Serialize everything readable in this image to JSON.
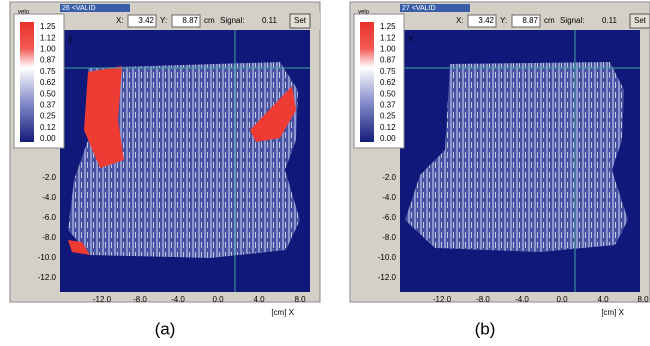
{
  "panels": [
    {
      "caption": "(a)",
      "window_title": "26 <VALID",
      "legend_title": "velo",
      "toolbar": {
        "x_label": "X:",
        "x_value": "3.42",
        "y_label": "Y:",
        "y_value": "8.87",
        "unit": "cm",
        "signal_label": "Signal:",
        "signal_value": "0.11",
        "button": "Set"
      },
      "legend_ticks": [
        "1.25",
        "1.12",
        "1.00",
        "0.87",
        "0.75",
        "0.62",
        "0.50",
        "0.37",
        "0.25",
        "0.12",
        "0.00"
      ],
      "y_axis_label": "Y",
      "y_ticks": [
        "-2.0",
        "-4.0",
        "-6.0",
        "-8.0",
        "-10.0",
        "-12.0"
      ],
      "x_ticks": [
        "-12.0",
        "-8.0",
        "-4.0",
        "0.0",
        "4.0",
        "8.0"
      ],
      "x_axis_label": "[cm] X"
    },
    {
      "caption": "(b)",
      "window_title": "27 <VALID",
      "legend_title": "velo",
      "toolbar": {
        "x_label": "X:",
        "x_value": "3.42",
        "y_label": "Y:",
        "y_value": "8.87",
        "unit": "cm",
        "signal_label": "Signal:",
        "signal_value": "0.11",
        "button": "Set"
      },
      "legend_ticks": [
        "1.25",
        "1.12",
        "1.00",
        "0.87",
        "0.75",
        "0.62",
        "0.50",
        "0.37",
        "0.25",
        "0.12",
        "0.00"
      ],
      "y_axis_label": "Y",
      "y_ticks": [
        "-2.0",
        "-4.0",
        "-6.0",
        "-8.0",
        "-10.0",
        "-12.0"
      ],
      "x_ticks": [
        "-12.0",
        "-8.0",
        "-4.0",
        "0.0",
        "4.0",
        "8.0"
      ],
      "x_axis_label": "[cm] X"
    }
  ]
}
